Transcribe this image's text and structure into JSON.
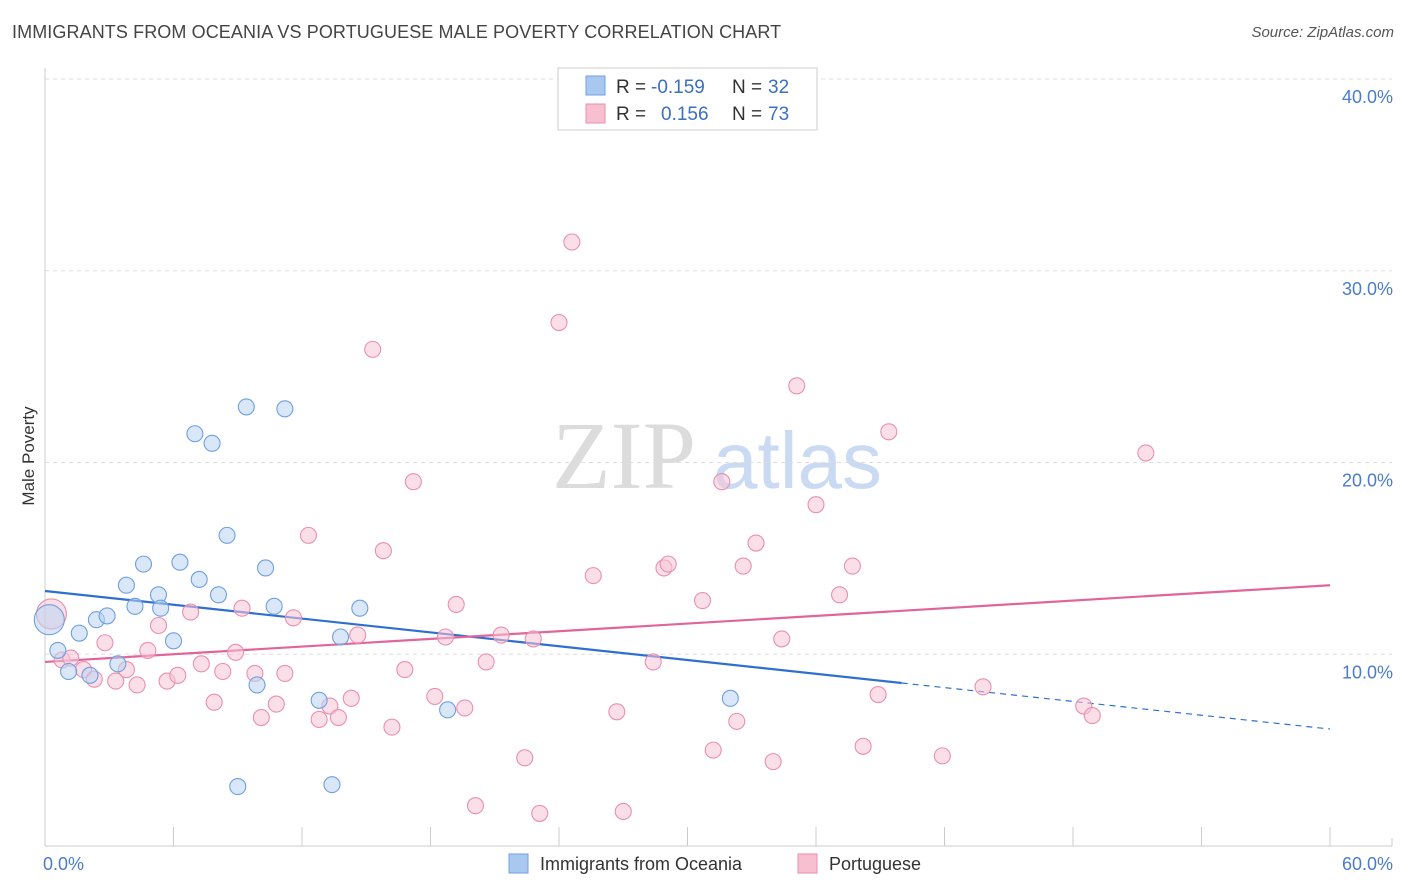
{
  "header": {
    "title": "IMMIGRANTS FROM OCEANIA VS PORTUGUESE MALE POVERTY CORRELATION CHART",
    "source": "Source: ZipAtlas.com"
  },
  "watermark": {
    "zip": "ZIP",
    "atlas": "atlas"
  },
  "legend": {
    "series": [
      {
        "r_label": "R =",
        "r_value": "-0.159",
        "n_label": "N =",
        "n_value": "32",
        "color": "#a9c8f0",
        "stroke": "#6f9fe0"
      },
      {
        "r_label": "R =",
        "r_value": "0.156",
        "n_label": "N =",
        "n_value": "73",
        "color": "#f7bfd0",
        "stroke": "#ea8fae"
      }
    ]
  },
  "bottom_legend": {
    "items": [
      {
        "label": "Immigrants from Oceania",
        "color": "#a9c8f0",
        "stroke": "#6f9fe0"
      },
      {
        "label": "Portuguese",
        "color": "#f7bfd0",
        "stroke": "#ea8fae"
      }
    ]
  },
  "chart_data": {
    "type": "scatter",
    "title": "IMMIGRANTS FROM OCEANIA VS PORTUGUESE MALE POVERTY CORRELATION CHART",
    "xlabel": "",
    "ylabel": "Male Poverty",
    "xlim": [
      0,
      60
    ],
    "ylim": [
      0,
      40
    ],
    "x_tick_labels": [
      {
        "value": 0,
        "label": "0.0%"
      },
      {
        "value": 60,
        "label": "60.0%"
      }
    ],
    "y_tick_labels": [
      {
        "value": 10,
        "label": "10.0%"
      },
      {
        "value": 20,
        "label": "20.0%"
      },
      {
        "value": 30,
        "label": "30.0%"
      },
      {
        "value": 40,
        "label": "40.0%"
      }
    ],
    "series": [
      {
        "name": "Immigrants from Oceania",
        "color": "#6f9fe0",
        "fill": "#b9d3f3",
        "points": [
          [
            0.2,
            11.8
          ],
          [
            0.6,
            10.2
          ],
          [
            1.1,
            9.1
          ],
          [
            1.6,
            11.1
          ],
          [
            2.1,
            8.9
          ],
          [
            2.4,
            11.8
          ],
          [
            2.9,
            12.0
          ],
          [
            3.4,
            9.5
          ],
          [
            3.8,
            13.6
          ],
          [
            4.2,
            12.5
          ],
          [
            4.6,
            14.7
          ],
          [
            5.3,
            13.1
          ],
          [
            5.4,
            12.4
          ],
          [
            6.0,
            10.7
          ],
          [
            6.3,
            14.8
          ],
          [
            7.0,
            21.5
          ],
          [
            7.2,
            13.9
          ],
          [
            7.8,
            21.0
          ],
          [
            8.1,
            13.1
          ],
          [
            8.5,
            16.2
          ],
          [
            9.0,
            3.1
          ],
          [
            9.4,
            22.9
          ],
          [
            9.9,
            8.4
          ],
          [
            10.3,
            14.5
          ],
          [
            10.7,
            12.5
          ],
          [
            11.2,
            22.8
          ],
          [
            12.8,
            7.6
          ],
          [
            13.4,
            3.2
          ],
          [
            13.8,
            10.9
          ],
          [
            14.7,
            12.4
          ],
          [
            18.8,
            7.1
          ],
          [
            32.0,
            7.7
          ]
        ],
        "trend": {
          "x": [
            0,
            40
          ],
          "y": [
            13.3,
            8.5
          ],
          "dashed_to": [
            60,
            6.1
          ]
        }
      },
      {
        "name": "Portuguese",
        "color": "#ea8fae",
        "fill": "#f7c5d5",
        "points": [
          [
            0.3,
            12.1
          ],
          [
            0.8,
            9.7
          ],
          [
            1.2,
            9.8
          ],
          [
            1.8,
            9.2
          ],
          [
            2.3,
            8.7
          ],
          [
            2.8,
            10.6
          ],
          [
            3.3,
            8.6
          ],
          [
            3.8,
            9.2
          ],
          [
            4.3,
            8.4
          ],
          [
            4.8,
            10.2
          ],
          [
            5.3,
            11.5
          ],
          [
            5.7,
            8.6
          ],
          [
            6.2,
            8.9
          ],
          [
            6.8,
            12.2
          ],
          [
            7.3,
            9.5
          ],
          [
            7.9,
            7.5
          ],
          [
            8.3,
            9.1
          ],
          [
            8.9,
            10.1
          ],
          [
            9.2,
            12.4
          ],
          [
            9.8,
            9.0
          ],
          [
            10.1,
            6.7
          ],
          [
            10.8,
            7.4
          ],
          [
            11.2,
            9.0
          ],
          [
            11.6,
            11.9
          ],
          [
            12.3,
            16.2
          ],
          [
            12.8,
            6.6
          ],
          [
            13.3,
            7.3
          ],
          [
            13.7,
            6.7
          ],
          [
            14.3,
            7.7
          ],
          [
            14.6,
            11.0
          ],
          [
            15.3,
            25.9
          ],
          [
            15.8,
            15.4
          ],
          [
            16.2,
            6.2
          ],
          [
            16.8,
            9.2
          ],
          [
            17.2,
            19.0
          ],
          [
            18.2,
            7.8
          ],
          [
            18.7,
            10.9
          ],
          [
            19.2,
            12.6
          ],
          [
            19.6,
            7.2
          ],
          [
            20.1,
            2.1
          ],
          [
            20.6,
            9.6
          ],
          [
            21.3,
            11.0
          ],
          [
            22.4,
            4.6
          ],
          [
            22.8,
            10.8
          ],
          [
            23.1,
            1.7
          ],
          [
            24.0,
            27.3
          ],
          [
            24.6,
            31.5
          ],
          [
            25.6,
            14.1
          ],
          [
            26.7,
            7.0
          ],
          [
            27.0,
            1.8
          ],
          [
            28.4,
            9.6
          ],
          [
            28.9,
            14.5
          ],
          [
            29.1,
            14.7
          ],
          [
            30.7,
            12.8
          ],
          [
            31.2,
            5.0
          ],
          [
            31.6,
            19.0
          ],
          [
            32.3,
            6.5
          ],
          [
            32.6,
            14.6
          ],
          [
            33.2,
            15.8
          ],
          [
            34.0,
            4.4
          ],
          [
            34.4,
            10.8
          ],
          [
            35.1,
            24.0
          ],
          [
            36.0,
            17.8
          ],
          [
            37.1,
            13.1
          ],
          [
            37.7,
            14.6
          ],
          [
            38.2,
            5.2
          ],
          [
            38.9,
            7.9
          ],
          [
            39.4,
            21.6
          ],
          [
            41.9,
            4.7
          ],
          [
            43.8,
            8.3
          ],
          [
            48.5,
            7.3
          ],
          [
            48.9,
            6.8
          ],
          [
            51.4,
            20.5
          ]
        ],
        "trend": {
          "x": [
            0,
            60
          ],
          "y": [
            9.6,
            13.6
          ]
        }
      }
    ]
  }
}
